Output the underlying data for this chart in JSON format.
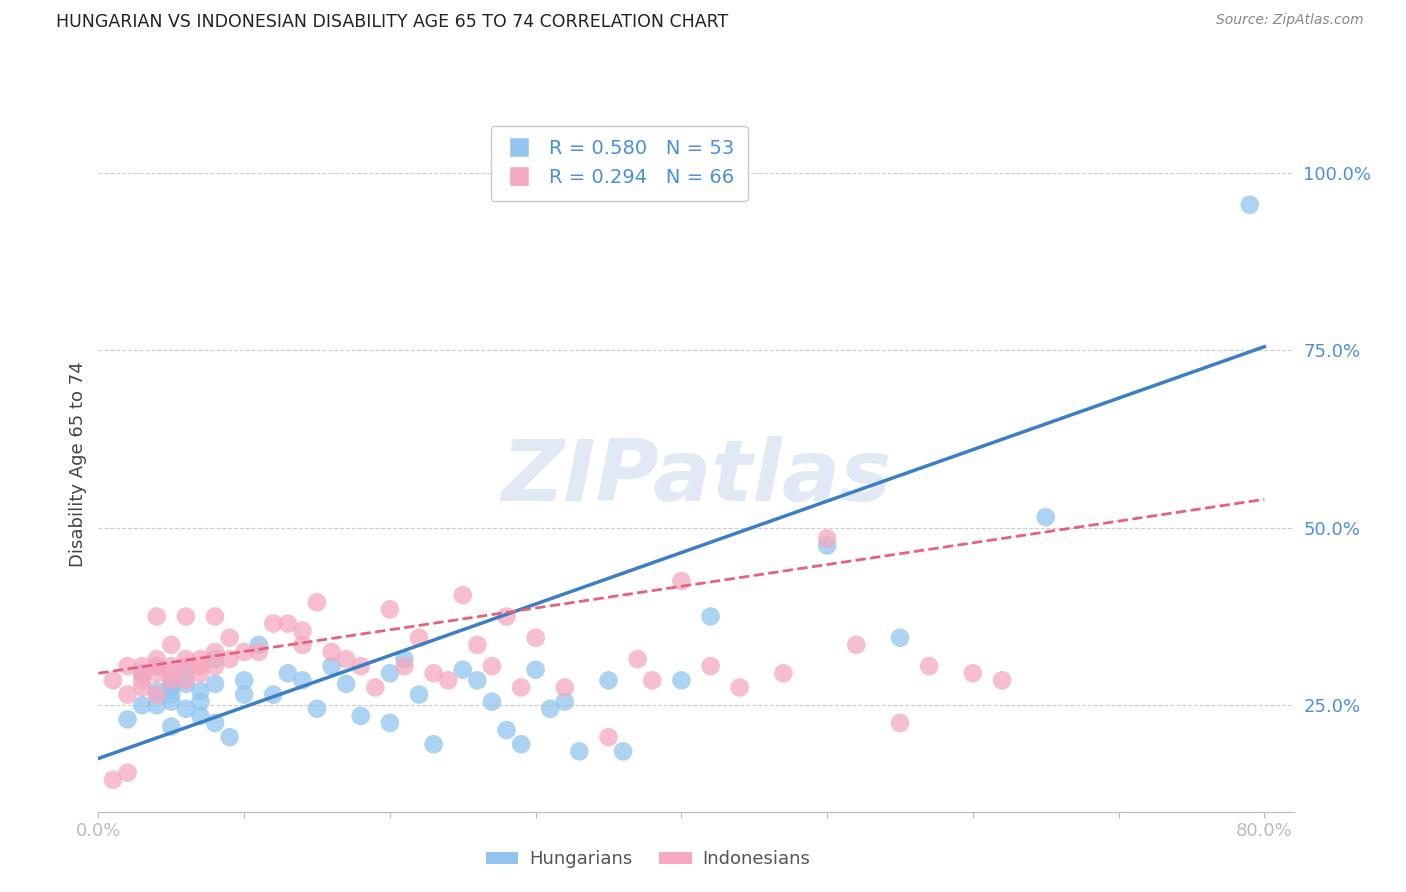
{
  "title": "HUNGARIAN VS INDONESIAN DISABILITY AGE 65 TO 74 CORRELATION CHART",
  "source": "Source: ZipAtlas.com",
  "ylabel": "Disability Age 65 to 74",
  "xlim": [
    0.0,
    0.82
  ],
  "ylim": [
    0.1,
    1.08
  ],
  "ytick_vals": [
    0.25,
    0.5,
    0.75,
    1.0
  ],
  "ytick_labels": [
    "25.0%",
    "50.0%",
    "75.0%",
    "100.0%"
  ],
  "xtick_vals": [
    0.0,
    0.1,
    0.2,
    0.3,
    0.4,
    0.5,
    0.6,
    0.7,
    0.8
  ],
  "xtick_labels": [
    "0.0%",
    "",
    "",
    "",
    "",
    "",
    "",
    "",
    "80.0%"
  ],
  "hungarian_color": "#92C5F0",
  "indonesian_color": "#F5A8C0",
  "hungarian_line_color": "#3A7EC6",
  "indonesian_line_color": "#E8607A",
  "tick_label_color": "#4A90D9",
  "legend_R_hun": "R = 0.580",
  "legend_N_hun": "N = 53",
  "legend_R_ind": "R = 0.294",
  "legend_N_ind": "N = 66",
  "background_color": "#FFFFFF",
  "grid_color": "#CCCCCC",
  "watermark_text": "ZIPatlas",
  "hun_line_x0": 0.0,
  "hun_line_y0": 0.175,
  "hun_line_x1": 0.8,
  "hun_line_y1": 0.755,
  "ind_line_x0": 0.0,
  "ind_line_y0": 0.295,
  "ind_line_x1": 0.8,
  "ind_line_y1": 0.54,
  "hungarian_x": [
    0.02,
    0.03,
    0.03,
    0.04,
    0.04,
    0.04,
    0.05,
    0.05,
    0.05,
    0.05,
    0.05,
    0.06,
    0.06,
    0.06,
    0.07,
    0.07,
    0.07,
    0.08,
    0.08,
    0.08,
    0.09,
    0.1,
    0.1,
    0.11,
    0.12,
    0.13,
    0.14,
    0.15,
    0.16,
    0.17,
    0.18,
    0.2,
    0.2,
    0.21,
    0.22,
    0.23,
    0.25,
    0.26,
    0.27,
    0.28,
    0.29,
    0.3,
    0.31,
    0.32,
    0.33,
    0.35,
    0.36,
    0.4,
    0.42,
    0.5,
    0.55,
    0.65,
    0.79
  ],
  "hungarian_y": [
    0.23,
    0.25,
    0.295,
    0.27,
    0.25,
    0.305,
    0.265,
    0.275,
    0.28,
    0.255,
    0.22,
    0.3,
    0.28,
    0.245,
    0.27,
    0.255,
    0.235,
    0.315,
    0.28,
    0.225,
    0.205,
    0.285,
    0.265,
    0.335,
    0.265,
    0.295,
    0.285,
    0.245,
    0.305,
    0.28,
    0.235,
    0.295,
    0.225,
    0.315,
    0.265,
    0.195,
    0.3,
    0.285,
    0.255,
    0.215,
    0.195,
    0.3,
    0.245,
    0.255,
    0.185,
    0.285,
    0.185,
    0.285,
    0.375,
    0.475,
    0.345,
    0.515,
    0.955
  ],
  "indonesian_x": [
    0.01,
    0.01,
    0.02,
    0.02,
    0.02,
    0.03,
    0.03,
    0.03,
    0.03,
    0.04,
    0.04,
    0.04,
    0.04,
    0.04,
    0.05,
    0.05,
    0.05,
    0.05,
    0.06,
    0.06,
    0.06,
    0.06,
    0.07,
    0.07,
    0.07,
    0.08,
    0.08,
    0.08,
    0.09,
    0.09,
    0.1,
    0.11,
    0.12,
    0.13,
    0.14,
    0.14,
    0.15,
    0.16,
    0.17,
    0.18,
    0.19,
    0.2,
    0.21,
    0.22,
    0.23,
    0.24,
    0.25,
    0.26,
    0.27,
    0.28,
    0.29,
    0.3,
    0.32,
    0.35,
    0.37,
    0.38,
    0.4,
    0.42,
    0.44,
    0.47,
    0.5,
    0.52,
    0.55,
    0.57,
    0.6,
    0.62
  ],
  "indonesian_y": [
    0.285,
    0.145,
    0.265,
    0.155,
    0.305,
    0.285,
    0.275,
    0.295,
    0.305,
    0.315,
    0.305,
    0.295,
    0.265,
    0.375,
    0.305,
    0.295,
    0.285,
    0.335,
    0.315,
    0.305,
    0.285,
    0.375,
    0.315,
    0.305,
    0.295,
    0.375,
    0.325,
    0.305,
    0.345,
    0.315,
    0.325,
    0.325,
    0.365,
    0.365,
    0.355,
    0.335,
    0.395,
    0.325,
    0.315,
    0.305,
    0.275,
    0.385,
    0.305,
    0.345,
    0.295,
    0.285,
    0.405,
    0.335,
    0.305,
    0.375,
    0.275,
    0.345,
    0.275,
    0.205,
    0.315,
    0.285,
    0.425,
    0.305,
    0.275,
    0.295,
    0.485,
    0.335,
    0.225,
    0.305,
    0.295,
    0.285
  ]
}
